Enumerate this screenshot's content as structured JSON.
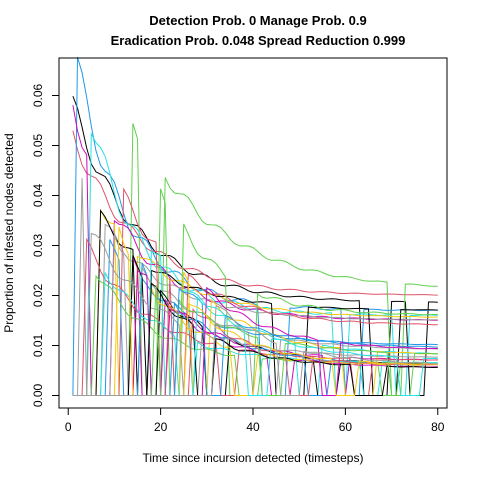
{
  "chart_data": {
    "type": "line",
    "title_line1": "Detection Prob. 0 Manage Prob. 0.9",
    "title_line2": "Eradication Prob. 0.048 Spread Reduction 0.999",
    "xlabel": "Time since incursion detected (timesteps)",
    "ylabel": "Proportion of infested nodes detected",
    "xlim": [
      -2,
      82
    ],
    "ylim": [
      -0.0025,
      0.0675
    ],
    "x_ticks": [
      0,
      20,
      40,
      60,
      80
    ],
    "y_ticks": [
      0.0,
      0.01,
      0.02,
      0.03,
      0.04,
      0.05,
      0.06
    ],
    "x_tick_labels": [
      "0",
      "20",
      "40",
      "60",
      "80"
    ],
    "y_tick_labels": [
      "0.00",
      "0.01",
      "0.02",
      "0.03",
      "0.04",
      "0.05",
      "0.06"
    ],
    "grid": false,
    "legend": "none",
    "x_end": 80,
    "series": [
      {
        "color": "#000000",
        "start": 1,
        "peak": 0.058,
        "floor": 0.0185,
        "tau": 14,
        "drops": [
          [
            64,
            69
          ],
          [
            74,
            77
          ]
        ]
      },
      {
        "color": "#DF536B",
        "start": 1,
        "peak": 0.052,
        "floor": 0.02,
        "tau": 14,
        "drops": []
      },
      {
        "color": "#61D04F",
        "start": 14,
        "peak": 0.055,
        "floor": 0.021,
        "tau": 18,
        "drops": [
          [
            16,
            20
          ],
          [
            70,
            72
          ]
        ]
      },
      {
        "color": "#2297E6",
        "start": 2,
        "peak": 0.066,
        "floor": 0.017,
        "tau": 11,
        "drops": [
          [
            42,
            47
          ],
          [
            60,
            63
          ]
        ]
      },
      {
        "color": "#28E2E5",
        "start": 2,
        "peak": 0.067,
        "floor": 0.016,
        "tau": 11,
        "drops": [
          [
            2,
            4
          ],
          [
            58,
            60
          ],
          [
            71,
            73
          ]
        ]
      },
      {
        "color": "#CD0BBC",
        "start": 1,
        "peak": 0.058,
        "floor": 0.015,
        "tau": 13,
        "drops": [
          [
            5,
            9
          ]
        ]
      },
      {
        "color": "#F5C710",
        "start": 7,
        "peak": 0.038,
        "floor": 0.0155,
        "tau": 15,
        "drops": [
          [
            11,
            14
          ]
        ]
      },
      {
        "color": "#9E9E9E",
        "start": 3,
        "peak": 0.042,
        "floor": 0.015,
        "tau": 14,
        "drops": [
          [
            4,
            7
          ]
        ]
      },
      {
        "color": "#000000",
        "start": 7,
        "peak": 0.036,
        "floor": 0.017,
        "tau": 14,
        "drops": [
          [
            15,
            17
          ],
          [
            45,
            51
          ],
          [
            66,
            71
          ]
        ]
      },
      {
        "color": "#DF536B",
        "start": 12,
        "peak": 0.04,
        "floor": 0.014,
        "tau": 14,
        "drops": [
          [
            20,
            25
          ]
        ]
      },
      {
        "color": "#61D04F",
        "start": 20,
        "peak": 0.042,
        "floor": 0.016,
        "tau": 12,
        "drops": [
          [
            22,
            24
          ],
          [
            35,
            40
          ]
        ]
      },
      {
        "color": "#2297E6",
        "start": 9,
        "peak": 0.03,
        "floor": 0.01,
        "tau": 15,
        "drops": [
          [
            12,
            15
          ],
          [
            27,
            31
          ]
        ]
      },
      {
        "color": "#28E2E5",
        "start": 18,
        "peak": 0.03,
        "floor": 0.008,
        "tau": 15,
        "drops": [
          [
            21,
            24
          ],
          [
            50,
            54
          ]
        ]
      },
      {
        "color": "#CD0BBC",
        "start": 14,
        "peak": 0.028,
        "floor": 0.007,
        "tau": 13,
        "drops": [
          [
            16,
            20
          ],
          [
            56,
            60
          ]
        ]
      },
      {
        "color": "#F5C710",
        "start": 25,
        "peak": 0.024,
        "floor": 0.008,
        "tau": 14,
        "drops": [
          [
            27,
            30
          ],
          [
            60,
            66
          ]
        ]
      },
      {
        "color": "#9E9E9E",
        "start": 10,
        "peak": 0.032,
        "floor": 0.009,
        "tau": 16,
        "drops": [
          [
            13,
            15
          ],
          [
            40,
            45
          ]
        ]
      },
      {
        "color": "#000000",
        "start": 14,
        "peak": 0.027,
        "floor": 0.006,
        "tau": 15,
        "drops": [
          [
            17,
            19
          ],
          [
            30,
            34
          ],
          [
            54,
            58
          ]
        ]
      },
      {
        "color": "#DF536B",
        "start": 4,
        "peak": 0.03,
        "floor": 0.007,
        "tau": 14,
        "drops": [
          [
            33,
            36
          ],
          [
            62,
            65
          ]
        ]
      },
      {
        "color": "#61D04F",
        "start": 6,
        "peak": 0.025,
        "floor": 0.0065,
        "tau": 12,
        "drops": [
          [
            37,
            41
          ],
          [
            68,
            71
          ]
        ]
      },
      {
        "color": "#2297E6",
        "start": 16,
        "peak": 0.026,
        "floor": 0.006,
        "tau": 14,
        "drops": [
          [
            18,
            22
          ],
          [
            52,
            56
          ]
        ]
      },
      {
        "color": "#28E2E5",
        "start": 8,
        "peak": 0.025,
        "floor": 0.0065,
        "tau": 13,
        "drops": [
          [
            24,
            27
          ],
          [
            64,
            67
          ]
        ]
      },
      {
        "color": "#CD0BBC",
        "start": 15,
        "peak": 0.026,
        "floor": 0.0055,
        "tau": 14,
        "drops": [
          [
            18,
            21
          ],
          [
            44,
            48
          ]
        ]
      },
      {
        "color": "#F5C710",
        "start": 11,
        "peak": 0.034,
        "floor": 0.006,
        "tau": 12,
        "drops": [
          [
            14,
            17
          ],
          [
            36,
            40
          ]
        ]
      },
      {
        "color": "#9E9E9E",
        "start": 5,
        "peak": 0.033,
        "floor": 0.0075,
        "tau": 15,
        "drops": [
          [
            25,
            28
          ]
        ]
      },
      {
        "color": "#000000",
        "start": 18,
        "peak": 0.022,
        "floor": 0.0055,
        "tau": 13,
        "drops": [
          [
            28,
            31
          ],
          [
            62,
            68
          ]
        ]
      },
      {
        "color": "#DF536B",
        "start": 22,
        "peak": 0.024,
        "floor": 0.006,
        "tau": 12,
        "drops": [
          [
            23,
            26
          ],
          [
            48,
            52
          ]
        ]
      },
      {
        "color": "#61D04F",
        "start": 19,
        "peak": 0.023,
        "floor": 0.008,
        "tau": 16,
        "drops": [
          [
            20,
            23
          ],
          [
            42,
            46
          ],
          [
            70,
            74
          ]
        ]
      },
      {
        "color": "#2297E6",
        "start": 24,
        "peak": 0.022,
        "floor": 0.0095,
        "tau": 14,
        "drops": [
          [
            30,
            33
          ]
        ]
      },
      {
        "color": "#28E2E5",
        "start": 28,
        "peak": 0.02,
        "floor": 0.007,
        "tau": 15,
        "drops": [
          [
            39,
            43
          ],
          [
            72,
            76
          ]
        ]
      },
      {
        "color": "#CD0BBC",
        "start": 30,
        "peak": 0.021,
        "floor": 0.009,
        "tau": 14,
        "drops": [
          [
            55,
            58
          ]
        ]
      },
      {
        "color": "#F5C710",
        "start": 26,
        "peak": 0.019,
        "floor": 0.006,
        "tau": 13,
        "drops": [
          [
            58,
            62
          ]
        ]
      },
      {
        "color": "#9E9E9E",
        "start": 32,
        "peak": 0.018,
        "floor": 0.006,
        "tau": 14,
        "drops": [
          [
            46,
            50
          ]
        ]
      }
    ]
  }
}
